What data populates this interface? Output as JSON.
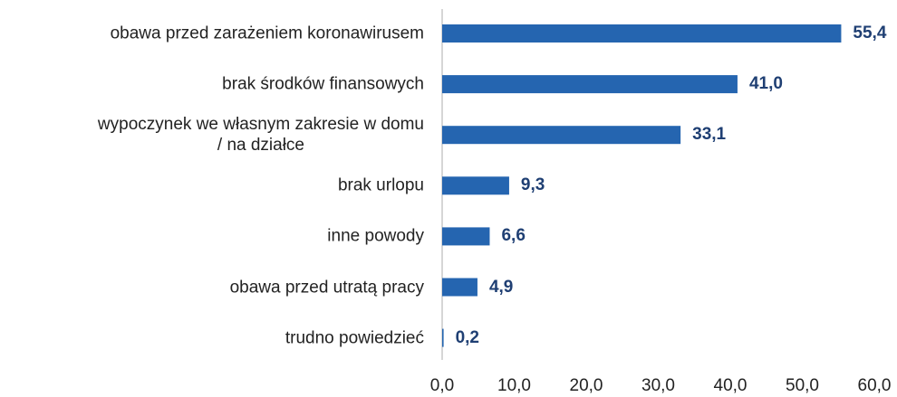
{
  "chart_data": {
    "type": "bar",
    "orientation": "horizontal",
    "categories": [
      "obawa przed zarażeniem koronawirusem",
      "brak środków finansowych",
      "wypoczynek we własnym zakresie w domu\n/ na działce",
      "brak urlopu",
      "inne powody",
      "obawa przed utratą pracy",
      "trudno powiedzieć"
    ],
    "values": [
      55.4,
      41.0,
      33.1,
      9.3,
      6.6,
      4.9,
      0.2
    ],
    "value_labels": [
      "55,4",
      "41,0",
      "33,1",
      "9,3",
      "6,6",
      "4,9",
      "0,2"
    ],
    "color": "#2565b0",
    "label_color": "#1f3f73",
    "xlim": [
      0,
      60
    ],
    "xticks": [
      {
        "value": 0,
        "label": "0,0"
      },
      {
        "value": 10,
        "label": "10,0"
      },
      {
        "value": 20,
        "label": "20,0"
      },
      {
        "value": 30,
        "label": "30,0"
      },
      {
        "value": 40,
        "label": "40,0"
      },
      {
        "value": 50,
        "label": "50,0"
      },
      {
        "value": 60,
        "label": "60,0"
      }
    ],
    "grid": false
  }
}
